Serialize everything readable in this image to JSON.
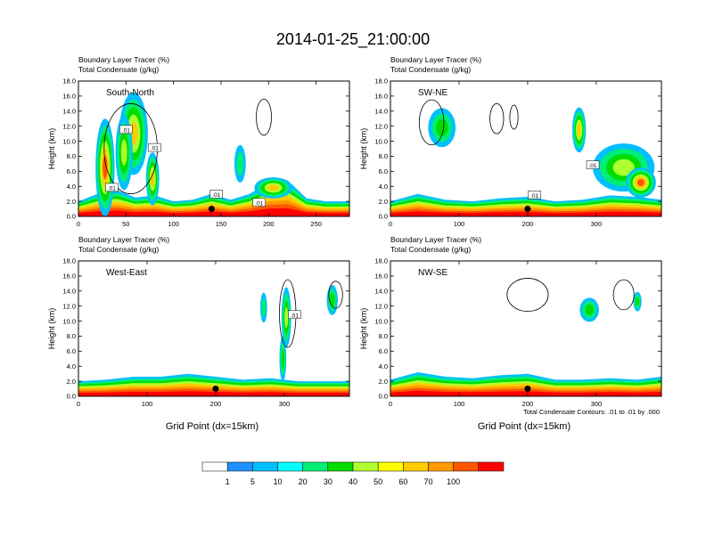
{
  "figure": {
    "title": "2014-01-25_21:00:00",
    "x_axis_label": "Grid Point (dx=15km)",
    "contour_note": "Total Condensate Contours: .01 to .01 by .000"
  },
  "chart_data": {
    "type": "contour",
    "variables": {
      "shaded": "Boundary Layer Tracer (%)",
      "contoured": "Total Condensate (g/kg)"
    },
    "panels": [
      {
        "name": "South-North",
        "label1": "Boundary Layer Tracer    (%)",
        "label2": "Total Condensate    (g/kg)",
        "xlim": [
          0,
          285
        ],
        "xticks": [
          0,
          50,
          100,
          150,
          200,
          250
        ],
        "ylim": [
          0,
          18
        ],
        "yticks": [
          0,
          2,
          4,
          6,
          8,
          10,
          12,
          14,
          16,
          18
        ],
        "ytick_labels": [
          "0.0",
          "2.0",
          "4.0",
          "6.0",
          "8.0",
          "10.0",
          "12.0",
          "14.0",
          "16.0",
          "18.0"
        ],
        "ylabel": "Height (km)",
        "marker_x": 140,
        "contour_labels": [
          {
            "text": ".01",
            "x": 50,
            "y": 11.5
          },
          {
            "text": ".01",
            "x": 80,
            "y": 9.1
          },
          {
            "text": ".01",
            "x": 35,
            "y": 3.8
          },
          {
            "text": ".01",
            "x": 145,
            "y": 2.9
          },
          {
            "text": ".01",
            "x": 190,
            "y": 1.8
          }
        ],
        "blobs": [
          {
            "x": 28,
            "y": 6.5,
            "rx": 10,
            "ry": 6.5,
            "level": 70
          },
          {
            "x": 58,
            "y": 11,
            "rx": 15,
            "ry": 5.5,
            "level": 60
          },
          {
            "x": 48,
            "y": 8.5,
            "rx": 9,
            "ry": 5,
            "level": 30
          },
          {
            "x": 78,
            "y": 5,
            "rx": 7,
            "ry": 3.5,
            "level": 50
          },
          {
            "x": 170,
            "y": 7,
            "rx": 6,
            "ry": 2.5,
            "level": 10
          },
          {
            "x": 205,
            "y": 3.8,
            "rx": 20,
            "ry": 1.4,
            "level": 60
          }
        ],
        "surface": [
          {
            "x": 0,
            "h": 2.0
          },
          {
            "x": 20,
            "h": 3.0
          },
          {
            "x": 40,
            "h": 3.5
          },
          {
            "x": 60,
            "h": 2.5
          },
          {
            "x": 80,
            "h": 2.8
          },
          {
            "x": 100,
            "h": 2.0
          },
          {
            "x": 120,
            "h": 2.2
          },
          {
            "x": 140,
            "h": 3.0
          },
          {
            "x": 160,
            "h": 2.2
          },
          {
            "x": 180,
            "h": 3.0
          },
          {
            "x": 200,
            "h": 4.5
          },
          {
            "x": 220,
            "h": 4.8
          },
          {
            "x": 240,
            "h": 2.4
          },
          {
            "x": 260,
            "h": 2.0
          },
          {
            "x": 285,
            "h": 2.0
          }
        ],
        "cloud_outlines": [
          {
            "x": 195,
            "y": 13.2,
            "rx": 8,
            "ry": 2.4
          },
          {
            "x": 55,
            "y": 9,
            "rx": 28,
            "ry": 6
          }
        ]
      },
      {
        "name": "SW-NE",
        "label1": "Boundary Layer Tracer    (%)",
        "label2": "Total Condensate    (g/kg)",
        "xlim": [
          0,
          395
        ],
        "xticks": [
          0,
          100,
          200,
          300
        ],
        "ylim": [
          0,
          18
        ],
        "yticks": [
          0,
          2,
          4,
          6,
          8,
          10,
          12,
          14,
          16,
          18
        ],
        "ytick_labels": [
          "0.0",
          "2.0",
          "4.0",
          "6.0",
          "8.0",
          "10.0",
          "12.0",
          "14.0",
          "16.0",
          "18.0"
        ],
        "ylabel": "Height (km)",
        "marker_x": 200,
        "contour_labels": [
          {
            "text": ".01",
            "x": 295,
            "y": 6.8
          },
          {
            "text": ".01",
            "x": 210,
            "y": 2.8
          }
        ],
        "blobs": [
          {
            "x": 75,
            "y": 11.8,
            "rx": 20,
            "ry": 2.6,
            "level": 20
          },
          {
            "x": 275,
            "y": 11.5,
            "rx": 10,
            "ry": 3,
            "level": 50
          },
          {
            "x": 340,
            "y": 6.5,
            "rx": 45,
            "ry": 3.2,
            "level": 40
          },
          {
            "x": 365,
            "y": 4.5,
            "rx": 22,
            "ry": 2,
            "level": 70
          }
        ],
        "surface": [
          {
            "x": 0,
            "h": 2.0
          },
          {
            "x": 40,
            "h": 3.0
          },
          {
            "x": 80,
            "h": 2.2
          },
          {
            "x": 120,
            "h": 2.0
          },
          {
            "x": 160,
            "h": 2.4
          },
          {
            "x": 200,
            "h": 2.6
          },
          {
            "x": 240,
            "h": 2.0
          },
          {
            "x": 280,
            "h": 2.2
          },
          {
            "x": 320,
            "h": 2.8
          },
          {
            "x": 360,
            "h": 2.6
          },
          {
            "x": 395,
            "h": 2.2
          }
        ],
        "cloud_outlines": [
          {
            "x": 60,
            "y": 12.5,
            "rx": 18,
            "ry": 3
          },
          {
            "x": 155,
            "y": 13,
            "rx": 10,
            "ry": 2
          },
          {
            "x": 180,
            "y": 13.2,
            "rx": 6,
            "ry": 1.6
          }
        ]
      },
      {
        "name": "West-East",
        "label1": "Boundary Layer Tracer    (%)",
        "label2": "Total Condensate    (g/kg)",
        "xlim": [
          0,
          395
        ],
        "xticks": [
          0,
          100,
          200,
          300
        ],
        "ylim": [
          0,
          18
        ],
        "yticks": [
          0,
          2,
          4,
          6,
          8,
          10,
          12,
          14,
          16,
          18
        ],
        "ytick_labels": [
          "0.0",
          "2.0",
          "4.0",
          "6.0",
          "8.0",
          "10.0",
          "12.0",
          "14.0",
          "16.0",
          "18.0"
        ],
        "ylabel": "Height (km)",
        "marker_x": 200,
        "contour_labels": [
          {
            "text": ".01",
            "x": 315,
            "y": 10.8
          }
        ],
        "blobs": [
          {
            "x": 303,
            "y": 10.5,
            "rx": 7,
            "ry": 4,
            "level": 30
          },
          {
            "x": 298,
            "y": 5,
            "rx": 5,
            "ry": 3,
            "level": 20
          },
          {
            "x": 370,
            "y": 12.8,
            "rx": 8,
            "ry": 2,
            "level": 20
          },
          {
            "x": 270,
            "y": 11.8,
            "rx": 5,
            "ry": 2,
            "level": 10
          }
        ],
        "surface": [
          {
            "x": 0,
            "h": 2.0
          },
          {
            "x": 40,
            "h": 2.2
          },
          {
            "x": 80,
            "h": 2.6
          },
          {
            "x": 120,
            "h": 2.6
          },
          {
            "x": 160,
            "h": 3.0
          },
          {
            "x": 200,
            "h": 2.6
          },
          {
            "x": 240,
            "h": 2.2
          },
          {
            "x": 280,
            "h": 2.4
          },
          {
            "x": 320,
            "h": 2.0
          },
          {
            "x": 360,
            "h": 2.0
          },
          {
            "x": 395,
            "h": 2.0
          }
        ],
        "cloud_outlines": [
          {
            "x": 305,
            "y": 11,
            "rx": 12,
            "ry": 4.5
          },
          {
            "x": 375,
            "y": 13.5,
            "rx": 10,
            "ry": 1.8
          }
        ]
      },
      {
        "name": "NW-SE",
        "label1": "Boundary Layer Tracer    (%)",
        "label2": "Total Condensate    (g/kg)",
        "xlim": [
          0,
          395
        ],
        "xticks": [
          0,
          100,
          200,
          300
        ],
        "ylim": [
          0,
          18
        ],
        "yticks": [
          0,
          2,
          4,
          6,
          8,
          10,
          12,
          14,
          16,
          18
        ],
        "ytick_labels": [
          "0.0",
          "2.0",
          "4.0",
          "6.0",
          "8.0",
          "10.0",
          "12.0",
          "14.0",
          "16.0",
          "18.0"
        ],
        "ylabel": "Height (km)",
        "marker_x": 200,
        "contour_labels": [],
        "blobs": [
          {
            "x": 290,
            "y": 11.5,
            "rx": 14,
            "ry": 1.6,
            "level": 20
          },
          {
            "x": 360,
            "y": 12.6,
            "rx": 6,
            "ry": 1.3,
            "level": 20
          }
        ],
        "surface": [
          {
            "x": 0,
            "h": 2.2
          },
          {
            "x": 40,
            "h": 3.2
          },
          {
            "x": 80,
            "h": 2.6
          },
          {
            "x": 120,
            "h": 2.4
          },
          {
            "x": 160,
            "h": 2.8
          },
          {
            "x": 200,
            "h": 3.0
          },
          {
            "x": 240,
            "h": 2.2
          },
          {
            "x": 280,
            "h": 2.2
          },
          {
            "x": 320,
            "h": 2.4
          },
          {
            "x": 360,
            "h": 2.2
          },
          {
            "x": 395,
            "h": 2.6
          }
        ],
        "cloud_outlines": [
          {
            "x": 200,
            "y": 13.5,
            "rx": 30,
            "ry": 2.2
          },
          {
            "x": 340,
            "y": 13.5,
            "rx": 15,
            "ry": 2
          }
        ]
      }
    ],
    "colorbar": {
      "labels": [
        "1",
        "5",
        "10",
        "20",
        "30",
        "40",
        "50",
        "60",
        "70",
        "100"
      ],
      "colors": [
        "#ffffff",
        "#1e90ff",
        "#00bfff",
        "#00ffff",
        "#00ee76",
        "#00dd00",
        "#adff2f",
        "#ffff00",
        "#ffcc00",
        "#ff9900",
        "#ff5500",
        "#ff0000"
      ]
    }
  }
}
